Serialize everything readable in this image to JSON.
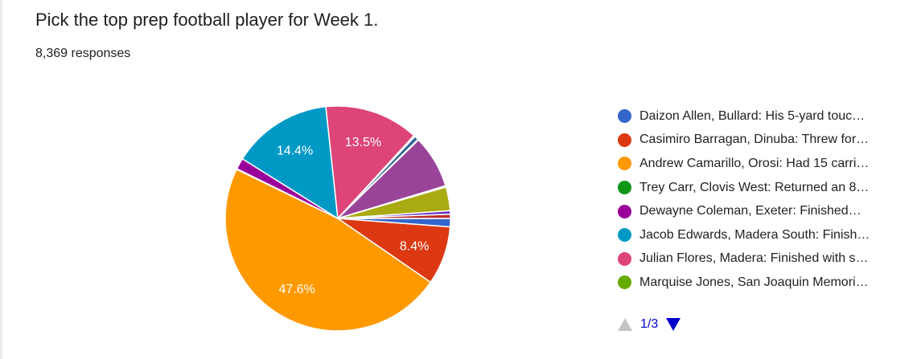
{
  "title": "Pick the top prep football player for Week 1.",
  "responses": "8,369 responses",
  "chart_data": {
    "type": "pie",
    "slices": [
      {
        "label": "Daizon Allen, Bullard: His 5-yard touc…",
        "value": 1.2,
        "color": "#3366cc",
        "data_label": ""
      },
      {
        "label": "Casimiro Barragan, Dinuba: Threw for…",
        "value": 8.4,
        "color": "#dc3912",
        "data_label": "8.4%"
      },
      {
        "label": "Andrew Camarillo, Orosi: Had 15 carri…",
        "value": 47.6,
        "color": "#ff9900",
        "data_label": "47.6%"
      },
      {
        "label": "Trey Carr, Clovis West: Returned an 8…",
        "value": 0.1,
        "color": "#109618",
        "data_label": ""
      },
      {
        "label": "Dewayne Coleman, Exeter: Finished…",
        "value": 1.6,
        "color": "#990099",
        "data_label": ""
      },
      {
        "label": "Jacob Edwards, Madera South: Finish…",
        "value": 14.4,
        "color": "#0099c6",
        "data_label": "14.4%"
      },
      {
        "label": "Julian Flores, Madera: Finished with s…",
        "value": 13.5,
        "color": "#dd4477",
        "data_label": "13.5%"
      },
      {
        "label": "Marquise Jones, San Joaquin Memori…",
        "value": 0.1,
        "color": "#66aa00",
        "data_label": ""
      },
      {
        "label": "",
        "value": 0.1,
        "color": "#b82e2e",
        "data_label": ""
      },
      {
        "label": "",
        "value": 0.6,
        "color": "#316395",
        "data_label": ""
      },
      {
        "label": "",
        "value": 0.1,
        "color": "#994499",
        "data_label": ""
      },
      {
        "label": "",
        "value": 7.6,
        "color": "#994499",
        "data_label": ""
      },
      {
        "label": "",
        "value": 0.2,
        "color": "#22aa99",
        "data_label": ""
      },
      {
        "label": "",
        "value": 3.4,
        "color": "#aaaa11",
        "data_label": ""
      },
      {
        "label": "",
        "value": 0.5,
        "color": "#6633cc",
        "data_label": ""
      },
      {
        "label": "",
        "value": 0.6,
        "color": "#b82e2e",
        "data_label": ""
      }
    ],
    "legend_position": "right"
  },
  "pager": {
    "text": "1/3"
  }
}
